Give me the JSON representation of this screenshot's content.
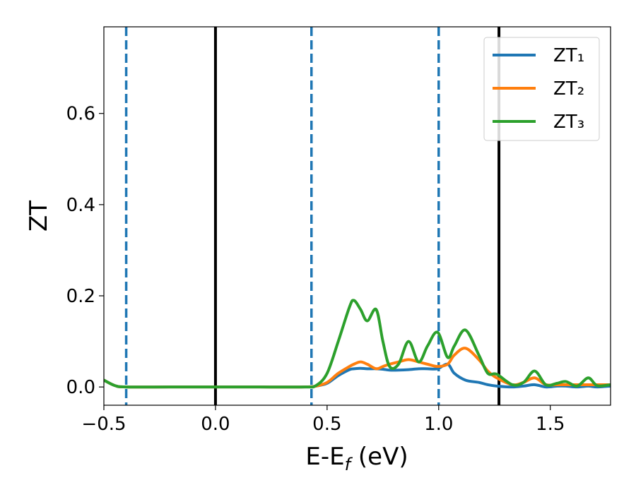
{
  "chart_data": {
    "type": "line",
    "xlabel": [
      "E-E",
      "f",
      " (eV)"
    ],
    "ylabel": "ZT",
    "xlim": [
      -0.5,
      1.77
    ],
    "ylim": [
      -0.04,
      0.79
    ],
    "xticks": [
      {
        "value": -0.5,
        "label": "−0.5"
      },
      {
        "value": 0,
        "label": "0.0"
      },
      0.5,
      {
        "value": 1,
        "label": "1.0"
      },
      1.5
    ],
    "yticks": [
      {
        "value": 0,
        "label": "0.0"
      },
      0.2,
      0.4,
      0.6
    ],
    "legend": "upper right",
    "x": [
      -0.5,
      -0.45,
      -0.4,
      -0.2,
      0,
      0.2,
      0.4,
      0.45,
      0.5,
      0.55,
      0.6,
      0.62,
      0.65,
      0.68,
      0.72,
      0.75,
      0.78,
      0.82,
      0.865,
      0.91,
      0.95,
      0.995,
      1.04,
      1.07,
      1.12,
      1.18,
      1.22,
      1.26,
      1.33,
      1.38,
      1.43,
      1.48,
      1.53,
      1.57,
      1.62,
      1.67,
      1.71,
      1.77
    ],
    "series": [
      {
        "name": "ZT₁",
        "color": "#1f77b4",
        "values": [
          0.015,
          0.003,
          0,
          0,
          0,
          0,
          0,
          0.002,
          0.008,
          0.025,
          0.038,
          0.04,
          0.041,
          0.04,
          0.04,
          0.039,
          0.037,
          0.037,
          0.038,
          0.04,
          0.04,
          0.04,
          0.05,
          0.03,
          0.015,
          0.01,
          0.005,
          0.002,
          0,
          0.002,
          0.005,
          0,
          0.002,
          0.002,
          0,
          0.002,
          0,
          0.002
        ]
      },
      {
        "name": "ZT₂",
        "color": "#ff7f0e",
        "values": [
          0.015,
          0.003,
          0,
          0,
          0,
          0,
          0,
          0.002,
          0.01,
          0.03,
          0.045,
          0.05,
          0.055,
          0.05,
          0.04,
          0.045,
          0.05,
          0.055,
          0.06,
          0.055,
          0.05,
          0.045,
          0.05,
          0.07,
          0.085,
          0.06,
          0.035,
          0.02,
          0.005,
          0.01,
          0.02,
          0.005,
          0.005,
          0.005,
          0.005,
          0.005,
          0.005,
          0.005
        ]
      },
      {
        "name": "ZT₃",
        "color": "#2ca02c",
        "values": [
          0.015,
          0.003,
          0,
          0,
          0,
          0,
          0,
          0.003,
          0.03,
          0.1,
          0.175,
          0.19,
          0.17,
          0.145,
          0.17,
          0.1,
          0.045,
          0.05,
          0.1,
          0.055,
          0.09,
          0.12,
          0.065,
          0.09,
          0.125,
          0.07,
          0.03,
          0.028,
          0.005,
          0.01,
          0.035,
          0.005,
          0.008,
          0.012,
          0.002,
          0.02,
          0.003,
          0.005
        ]
      }
    ],
    "vlines": [
      {
        "x": -0.4,
        "color": "#1f77b4",
        "style": "dashed"
      },
      {
        "x": 0,
        "color": "#000000",
        "style": "solid"
      },
      {
        "x": 0.43,
        "color": "#1f77b4",
        "style": "dashed"
      },
      {
        "x": 1,
        "color": "#1f77b4",
        "style": "dashed"
      },
      {
        "x": 1.27,
        "color": "#000000",
        "style": "solid"
      }
    ]
  }
}
